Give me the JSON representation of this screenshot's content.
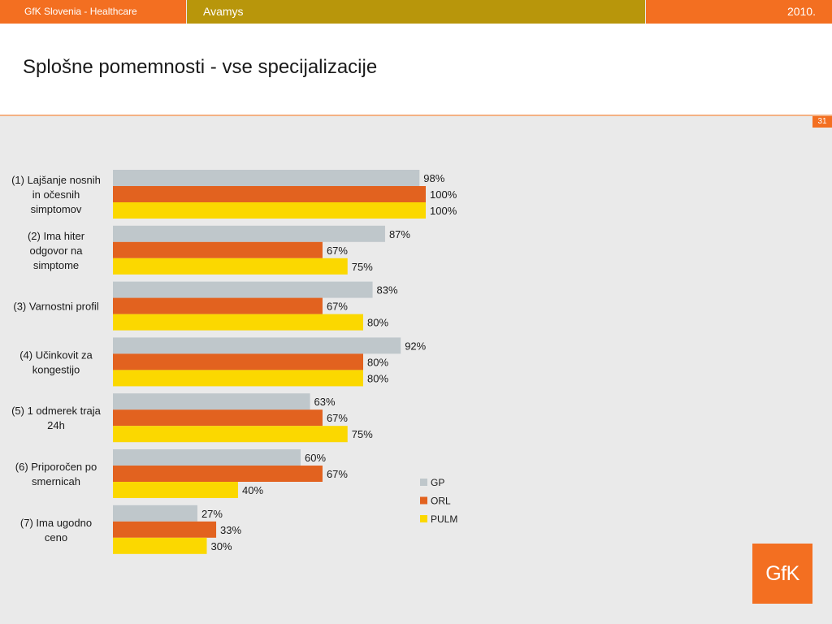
{
  "header": {
    "left": "GfK Slovenia - Healthcare",
    "center": "Avamys",
    "right": "2010."
  },
  "slide": {
    "title": "Splošne pomemnosti - vse specijalizacije",
    "page_number": "31"
  },
  "logo": {
    "text": "GfK"
  },
  "colors": {
    "brand_orange": "#f36f21",
    "header_gold": "#b8960b",
    "gp": "#bfc7cb",
    "orl": "#e2621f",
    "pulm": "#fbd800"
  },
  "chart_data": {
    "type": "bar",
    "orientation": "horizontal",
    "categories": [
      [
        "(1) Lajšanje nosnih",
        "in očesnih",
        "simptomov"
      ],
      [
        "(2) Ima hiter",
        "odgovor na",
        "simptome"
      ],
      [
        "(3) Varnostni profil"
      ],
      [
        "(4) Učinkovit za",
        "kongestijo"
      ],
      [
        "(5) 1 odmerek traja",
        "24h"
      ],
      [
        "(6) Priporočen po",
        "smernicah"
      ],
      [
        "(7) Ima ugodno",
        "ceno"
      ]
    ],
    "series": [
      {
        "name": "GP",
        "values": [
          98,
          87,
          83,
          92,
          63,
          60,
          27
        ],
        "color": "#bfc7cb"
      },
      {
        "name": "ORL",
        "values": [
          100,
          67,
          67,
          80,
          67,
          67,
          33
        ],
        "color": "#e2621f"
      },
      {
        "name": "PULM",
        "values": [
          100,
          75,
          80,
          80,
          75,
          40,
          30
        ],
        "color": "#fbd800"
      }
    ],
    "value_suffix": "%",
    "xlim": [
      0,
      100
    ],
    "legend_position": "right",
    "grid": false
  }
}
